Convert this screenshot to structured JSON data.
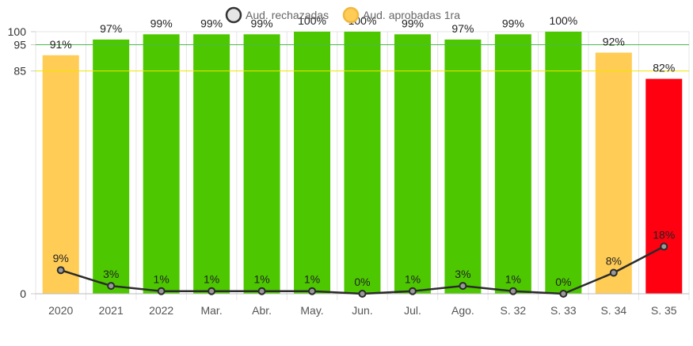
{
  "chart_data": {
    "type": "bar",
    "categories": [
      "2020",
      "2021",
      "2022",
      "Mar.",
      "Abr.",
      "May.",
      "Jun.",
      "Jul.",
      "Ago.",
      "S. 32",
      "S. 33",
      "S. 34",
      "S. 35"
    ],
    "series": [
      {
        "name": "Aud. aprobadas 1ra",
        "type": "bar",
        "values": [
          91,
          97,
          99,
          99,
          99,
          100,
          100,
          99,
          97,
          99,
          100,
          92,
          82
        ],
        "labels": [
          "91%",
          "97%",
          "99%",
          "99%",
          "99%",
          "100%",
          "100%",
          "99%",
          "97%",
          "99%",
          "100%",
          "92%",
          "82%"
        ],
        "bar_colors": [
          "#ffcc55",
          "#4dc800",
          "#4dc800",
          "#4dc800",
          "#4dc800",
          "#4dc800",
          "#4dc800",
          "#4dc800",
          "#4dc800",
          "#4dc800",
          "#4dc800",
          "#ffcc55",
          "#ff0010"
        ]
      },
      {
        "name": "Aud. rechazadas",
        "type": "line",
        "values": [
          9,
          3,
          1,
          1,
          1,
          1,
          0,
          1,
          3,
          1,
          0,
          8,
          18
        ],
        "labels": [
          "9%",
          "3%",
          "1%",
          "1%",
          "1%",
          "1%",
          "0%",
          "1%",
          "3%",
          "1%",
          "0%",
          "8%",
          "18%"
        ],
        "color": "#2b2b2b"
      }
    ],
    "yticks": [
      "0",
      "85",
      "95",
      "100"
    ],
    "ylim": [
      0,
      100
    ],
    "reference_lines": [
      {
        "value": 95,
        "color": "#4cb84c"
      },
      {
        "value": 85,
        "color": "#f2e600"
      }
    ],
    "legend": {
      "position": "top-center",
      "items": [
        {
          "label": "Aud. rechazadas",
          "color": "#e6e6e6",
          "border": "#333333"
        },
        {
          "label": "Aud. aprobadas 1ra",
          "color": "#ffcc55",
          "border": "#f0b840"
        }
      ]
    },
    "grid": true
  }
}
